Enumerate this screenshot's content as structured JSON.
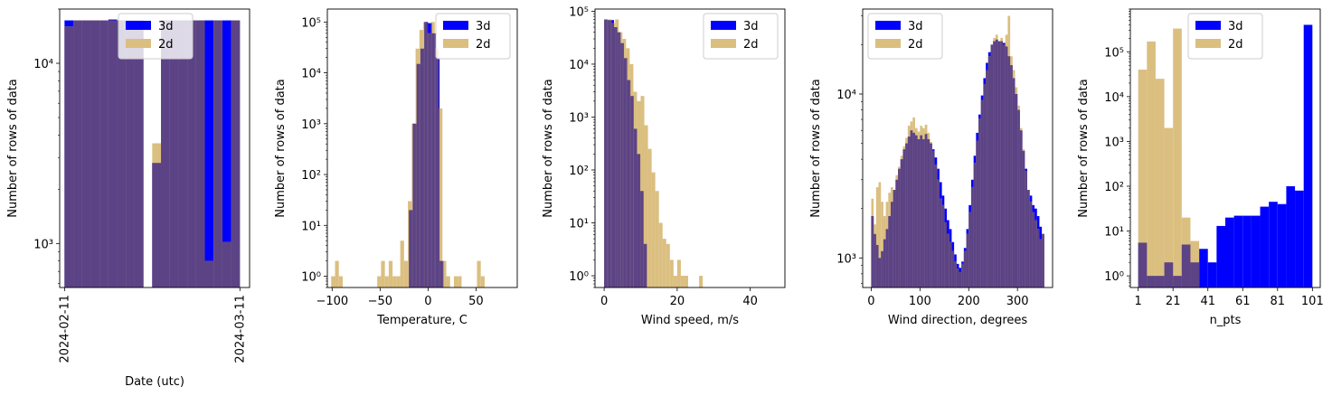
{
  "colors": {
    "series_3d": "#0000ff",
    "series_2d": "#dbbf80",
    "overlap": "#5c4385"
  },
  "chart_data": [
    {
      "type": "bar",
      "xlabel": "Date (utc)",
      "ylabel": "Number of rows of data",
      "yscale": "log",
      "ylim": [
        570,
        20000
      ],
      "xlim": [
        -0.8,
        30.6
      ],
      "xticks": [
        {
          "value": 0,
          "label": "2024-02-11"
        },
        {
          "value": 29,
          "label": "2024-03-11"
        }
      ],
      "xtick_rotation": 90,
      "yticks": [
        {
          "value": 1000,
          "label": "10³"
        },
        {
          "value": 10000,
          "label": "10⁴"
        }
      ],
      "legend": {
        "loc": "upper center",
        "entries": [
          "3d",
          "2d"
        ]
      },
      "series": [
        {
          "name": "3d",
          "edges": [
            0,
            1.45,
            2.9,
            4.35,
            5.8,
            7.25,
            8.7,
            10.15,
            11.6,
            13.05,
            14.5,
            15.95,
            17.4,
            18.85,
            20.3,
            21.75,
            23.2,
            24.65,
            26.1,
            27.55,
            29
          ],
          "values": [
            17300,
            17300,
            17300,
            17300,
            17300,
            17500,
            17300,
            17300,
            17300,
            0,
            2800,
            17300,
            17300,
            17300,
            17300,
            17300,
            17300,
            17300,
            17300,
            17300
          ]
        },
        {
          "name": "2d",
          "edges": [
            0,
            1.45,
            2.9,
            4.35,
            5.8,
            7.25,
            8.7,
            10.15,
            11.6,
            13.05,
            14.5,
            15.95,
            17.4,
            18.85,
            20.3,
            21.75,
            23.2,
            24.65,
            26.1,
            27.55,
            29
          ],
          "values": [
            16000,
            17300,
            17300,
            17300,
            17300,
            17300,
            17300,
            17300,
            17300,
            0,
            3600,
            17300,
            17300,
            17300,
            17300,
            17300,
            800,
            17300,
            1020,
            17300
          ]
        }
      ]
    },
    {
      "type": "bar",
      "xlabel": "Temperature, C",
      "ylabel": "Number of rows of data",
      "yscale": "log",
      "ylim": [
        0.6,
        180000
      ],
      "xlim": [
        -105,
        93
      ],
      "xticks": [
        {
          "value": -100,
          "label": "−100"
        },
        {
          "value": -50,
          "label": "−50"
        },
        {
          "value": 0,
          "label": "0"
        },
        {
          "value": 50,
          "label": "50"
        }
      ],
      "yticks": [
        {
          "value": 1,
          "label": "10⁰"
        },
        {
          "value": 10,
          "label": "10¹"
        },
        {
          "value": 100,
          "label": "10²"
        },
        {
          "value": 1000,
          "label": "10³"
        },
        {
          "value": 10000,
          "label": "10⁴"
        },
        {
          "value": 100000,
          "label": "10⁵"
        }
      ],
      "legend": {
        "loc": "upper right",
        "entries": [
          "3d",
          "2d"
        ]
      },
      "series": [
        {
          "name": "3d",
          "edges": [
            -20,
            -16,
            -12,
            -8,
            -4,
            0,
            4,
            8,
            12,
            16
          ],
          "values": [
            20,
            1000,
            15000,
            30000,
            100000,
            95000,
            60000,
            20000,
            2
          ]
        },
        {
          "name": "2d",
          "edges": [
            -101,
            -97,
            -93,
            -89,
            -85,
            -81,
            -77,
            -73,
            -69,
            -65,
            -61,
            -57,
            -53,
            -49,
            -45,
            -41,
            -37,
            -33,
            -29,
            -25,
            -21,
            -17,
            -13,
            -9,
            -5,
            -1,
            3,
            7,
            11,
            15,
            19,
            23,
            27,
            31,
            35,
            39,
            43,
            47,
            51,
            55,
            59
          ],
          "values": [
            1,
            2,
            1,
            0,
            0,
            0,
            0,
            0,
            0,
            0,
            0,
            0,
            1,
            2,
            1,
            2,
            1,
            1,
            5,
            2,
            30,
            1000,
            30000,
            70000,
            100000,
            60000,
            100000,
            30000,
            2000,
            2,
            1,
            0,
            1,
            1,
            0,
            0,
            0,
            0,
            2,
            1
          ]
        }
      ]
    },
    {
      "type": "bar",
      "xlabel": "Wind speed, m/s",
      "ylabel": "Number of rows of data",
      "yscale": "log",
      "ylim": [
        0.6,
        110000
      ],
      "xlim": [
        -2.5,
        49.5
      ],
      "xticks": [
        {
          "value": 0,
          "label": "0"
        },
        {
          "value": 20,
          "label": "20"
        },
        {
          "value": 40,
          "label": "40"
        }
      ],
      "yticks": [
        {
          "value": 1,
          "label": "10⁰"
        },
        {
          "value": 10,
          "label": "10¹"
        },
        {
          "value": 100,
          "label": "10²"
        },
        {
          "value": 1000,
          "label": "10³"
        },
        {
          "value": 10000,
          "label": "10⁴"
        },
        {
          "value": 100000,
          "label": "10⁵"
        }
      ],
      "legend": {
        "loc": "upper right",
        "entries": [
          "3d",
          "2d"
        ]
      },
      "series": [
        {
          "name": "3d",
          "edges": [
            0,
            0.9,
            1.8,
            2.7,
            3.6,
            4.5,
            5.4,
            6.3,
            7.2,
            8.1,
            9,
            9.9,
            10.8,
            11.7
          ],
          "values": [
            70000,
            68000,
            68000,
            50000,
            40000,
            25000,
            13000,
            5000,
            2500,
            600,
            200,
            40,
            4
          ]
        },
        {
          "name": "2d",
          "edges": [
            0,
            1,
            2,
            3,
            4,
            5,
            6,
            7,
            8,
            9,
            10,
            11,
            12,
            13,
            14,
            15,
            16,
            17,
            18,
            19,
            20,
            21,
            22,
            23,
            24,
            25,
            26,
            27
          ],
          "values": [
            70000,
            70000,
            60000,
            70000,
            40000,
            30000,
            20000,
            10000,
            3000,
            2000,
            2500,
            700,
            250,
            90,
            40,
            10,
            5,
            4,
            2,
            1,
            2,
            1,
            1,
            0,
            0,
            0,
            1
          ]
        }
      ]
    },
    {
      "type": "bar",
      "xlabel": "Wind direction, degrees",
      "ylabel": "Number of rows of data",
      "yscale": "log",
      "ylim": [
        660,
        33000
      ],
      "xlim": [
        -17.5,
        372
      ],
      "xticks": [
        {
          "value": 0,
          "label": "0"
        },
        {
          "value": 100,
          "label": "100"
        },
        {
          "value": 200,
          "label": "200"
        },
        {
          "value": 300,
          "label": "300"
        }
      ],
      "yticks": [
        {
          "value": 1000,
          "label": "10³"
        },
        {
          "value": 10000,
          "label": "10⁴"
        }
      ],
      "legend": {
        "loc": "upper left",
        "entries": [
          "3d",
          "2d"
        ]
      },
      "series": [
        {
          "name": "3d",
          "bin_width": 5,
          "start": 0,
          "values": [
            1800,
            1400,
            1200,
            1000,
            1100,
            1300,
            1500,
            1800,
            2200,
            2600,
            3000,
            3500,
            4000,
            4600,
            5000,
            5500,
            6000,
            5800,
            5600,
            5300,
            5600,
            5300,
            5700,
            5300,
            5000,
            4600,
            4100,
            3500,
            2900,
            2400,
            2000,
            1700,
            1500,
            1250,
            1050,
            920,
            870,
            950,
            1150,
            1500,
            2100,
            3000,
            4200,
            5800,
            7500,
            9800,
            12500,
            15500,
            18000,
            20000,
            21000,
            21500,
            21000,
            21000,
            20500,
            19500,
            17000,
            15000,
            12500,
            10000,
            8000,
            6000,
            4500,
            3500,
            2600,
            2400,
            2100,
            2000,
            1800,
            1550,
            1400
          ]
        },
        {
          "name": "2d",
          "bin_width": 5,
          "start": 0,
          "values": [
            2300,
            1600,
            2700,
            2900,
            2200,
            1800,
            2200,
            2500,
            2700,
            2600,
            3200,
            3600,
            4200,
            4800,
            5400,
            6400,
            6800,
            7200,
            6200,
            5900,
            6400,
            6200,
            6500,
            5800,
            5100,
            4500,
            3700,
            3000,
            2300,
            2100,
            1650,
            1400,
            1250,
            1100,
            950,
            860,
            820,
            920,
            1100,
            1400,
            1900,
            2700,
            3800,
            5200,
            7100,
            9200,
            11500,
            14000,
            17000,
            20000,
            22000,
            23000,
            21000,
            22000,
            20000,
            23000,
            30000,
            17000,
            14000,
            11000,
            8500,
            6200,
            4600,
            3400,
            2600,
            2200,
            1900,
            1700,
            1500,
            1300,
            1400
          ]
        }
      ]
    },
    {
      "type": "bar",
      "xlabel": "n_pts",
      "ylabel": "Number of rows of data",
      "yscale": "log",
      "ylim": [
        0.55,
        900000
      ],
      "xlim": [
        -3.5,
        105.5
      ],
      "xticks": [
        {
          "value": 1,
          "label": "1"
        },
        {
          "value": 21,
          "label": "21"
        },
        {
          "value": 41,
          "label": "41"
        },
        {
          "value": 61,
          "label": "61"
        },
        {
          "value": 81,
          "label": "81"
        },
        {
          "value": 101,
          "label": "101"
        }
      ],
      "yticks": [
        {
          "value": 1,
          "label": "10⁰"
        },
        {
          "value": 10,
          "label": "10¹"
        },
        {
          "value": 100,
          "label": "10²"
        },
        {
          "value": 1000,
          "label": "10³"
        },
        {
          "value": 10000,
          "label": "10⁴"
        },
        {
          "value": 100000,
          "label": "10⁵"
        }
      ],
      "legend": {
        "loc": "upper center",
        "entries": [
          "3d",
          "2d"
        ]
      },
      "series": [
        {
          "name": "3d",
          "edges": [
            1,
            6,
            11,
            16,
            21,
            26,
            31,
            36,
            41,
            46,
            51,
            56,
            61,
            66,
            71,
            76,
            81,
            86,
            91,
            96,
            101
          ],
          "values": [
            5.5,
            1,
            1,
            2,
            1,
            5,
            2,
            4,
            2,
            13,
            20,
            22,
            22,
            22,
            35,
            45,
            40,
            100,
            80,
            400000
          ]
        },
        {
          "name": "2d",
          "edges": [
            1,
            6,
            11,
            16,
            21,
            26,
            31,
            36
          ],
          "values": [
            40000,
            170000,
            25000,
            2000,
            330000,
            20,
            6
          ]
        }
      ]
    }
  ]
}
